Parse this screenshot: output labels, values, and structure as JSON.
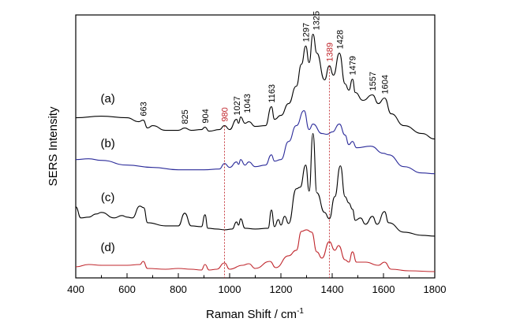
{
  "chart_data": {
    "type": "line",
    "title": "",
    "xlabel": "Raman Shift / cm",
    "xlabel_superscript": "-1",
    "ylabel": "SERS Intensity",
    "xlim": [
      400,
      1800
    ],
    "ylim": [
      0,
      100
    ],
    "xticks": [
      400,
      600,
      800,
      1000,
      1200,
      1400,
      1600,
      1800
    ],
    "xminor_step": 100,
    "yticks": [],
    "grid": false,
    "series": [
      {
        "label": "(a)",
        "label_x": 525,
        "color": "#000000",
        "points": [
          [
            400,
            60.9
          ],
          [
            500,
            61.5
          ],
          [
            600,
            60.9
          ],
          [
            645,
            59.4
          ],
          [
            663,
            60
          ],
          [
            680,
            57
          ],
          [
            700,
            57.9
          ],
          [
            750,
            56.1
          ],
          [
            800,
            56.1
          ],
          [
            825,
            57
          ],
          [
            850,
            56.1
          ],
          [
            890,
            56.4
          ],
          [
            904,
            57.3
          ],
          [
            920,
            55.8
          ],
          [
            960,
            56.4
          ],
          [
            980,
            57.9
          ],
          [
            1000,
            56.4
          ],
          [
            1027,
            60.3
          ],
          [
            1035,
            58.8
          ],
          [
            1043,
            61.2
          ],
          [
            1060,
            58.8
          ],
          [
            1075,
            59.4
          ],
          [
            1100,
            57.6
          ],
          [
            1140,
            57.9
          ],
          [
            1163,
            65.1
          ],
          [
            1175,
            60.3
          ],
          [
            1200,
            61.8
          ],
          [
            1230,
            66.3
          ],
          [
            1260,
            72.9
          ],
          [
            1280,
            81.3
          ],
          [
            1297,
            88.2
          ],
          [
            1310,
            81.9
          ],
          [
            1325,
            92.7
          ],
          [
            1340,
            85.5
          ],
          [
            1370,
            75.3
          ],
          [
            1389,
            80.7
          ],
          [
            1405,
            77.1
          ],
          [
            1428,
            85.5
          ],
          [
            1450,
            73.8
          ],
          [
            1465,
            71.4
          ],
          [
            1479,
            75.6
          ],
          [
            1490,
            70.5
          ],
          [
            1520,
            67.5
          ],
          [
            1557,
            69.6
          ],
          [
            1580,
            66.3
          ],
          [
            1604,
            68.4
          ],
          [
            1630,
            62.4
          ],
          [
            1680,
            57.9
          ],
          [
            1750,
            54.9
          ],
          [
            1800,
            52.8
          ]
        ]
      },
      {
        "label": "(b)",
        "label_x": 525,
        "color": "#2b2b9a",
        "points": [
          [
            400,
            45
          ],
          [
            450,
            45.3
          ],
          [
            500,
            44.7
          ],
          [
            600,
            42.9
          ],
          [
            700,
            42
          ],
          [
            800,
            41.1
          ],
          [
            900,
            41.1
          ],
          [
            960,
            41.4
          ],
          [
            980,
            43.5
          ],
          [
            1000,
            42
          ],
          [
            1027,
            44.1
          ],
          [
            1035,
            43.2
          ],
          [
            1043,
            45
          ],
          [
            1060,
            42.9
          ],
          [
            1075,
            44.1
          ],
          [
            1100,
            42.3
          ],
          [
            1140,
            42.9
          ],
          [
            1163,
            46.8
          ],
          [
            1175,
            44.4
          ],
          [
            1200,
            45
          ],
          [
            1230,
            51.9
          ],
          [
            1260,
            57.9
          ],
          [
            1290,
            63.6
          ],
          [
            1310,
            56.4
          ],
          [
            1325,
            58.5
          ],
          [
            1360,
            54.9
          ],
          [
            1380,
            54.6
          ],
          [
            1400,
            55.5
          ],
          [
            1428,
            58.5
          ],
          [
            1450,
            54.3
          ],
          [
            1465,
            50.7
          ],
          [
            1479,
            51.9
          ],
          [
            1495,
            49.5
          ],
          [
            1550,
            50.1
          ],
          [
            1600,
            47.4
          ],
          [
            1620,
            46.8
          ],
          [
            1680,
            42.3
          ],
          [
            1750,
            39.9
          ],
          [
            1800,
            39.6
          ]
        ]
      },
      {
        "label": "(c)",
        "label_x": 525,
        "color": "#000000",
        "points": [
          [
            400,
            27
          ],
          [
            420,
            22.8
          ],
          [
            450,
            23.1
          ],
          [
            480,
            24.3
          ],
          [
            500,
            24.9
          ],
          [
            550,
            22.8
          ],
          [
            580,
            23.7
          ],
          [
            600,
            23.1
          ],
          [
            620,
            22.8
          ],
          [
            650,
            27.3
          ],
          [
            665,
            26.7
          ],
          [
            680,
            21
          ],
          [
            750,
            19.8
          ],
          [
            800,
            19.8
          ],
          [
            825,
            24.6
          ],
          [
            850,
            19.8
          ],
          [
            890,
            19.5
          ],
          [
            904,
            24
          ],
          [
            915,
            18.9
          ],
          [
            950,
            18.6
          ],
          [
            980,
            18.3
          ],
          [
            1010,
            18.6
          ],
          [
            1027,
            21.3
          ],
          [
            1035,
            20.1
          ],
          [
            1043,
            22.5
          ],
          [
            1060,
            18.9
          ],
          [
            1100,
            18.6
          ],
          [
            1150,
            18.9
          ],
          [
            1163,
            25.8
          ],
          [
            1175,
            19.5
          ],
          [
            1190,
            22.2
          ],
          [
            1200,
            20.1
          ],
          [
            1215,
            23.4
          ],
          [
            1230,
            20.7
          ],
          [
            1260,
            33.9
          ],
          [
            1275,
            34.5
          ],
          [
            1297,
            42.9
          ],
          [
            1310,
            33
          ],
          [
            1325,
            54.9
          ],
          [
            1340,
            32.4
          ],
          [
            1370,
            24.9
          ],
          [
            1389,
            22.5
          ],
          [
            1410,
            30.9
          ],
          [
            1432,
            42.6
          ],
          [
            1450,
            30.9
          ],
          [
            1465,
            28.5
          ],
          [
            1479,
            26.1
          ],
          [
            1490,
            21.9
          ],
          [
            1510,
            22.8
          ],
          [
            1530,
            20.4
          ],
          [
            1557,
            23.4
          ],
          [
            1575,
            20.4
          ],
          [
            1604,
            25.2
          ],
          [
            1620,
            21
          ],
          [
            1680,
            17.4
          ],
          [
            1750,
            16.2
          ],
          [
            1800,
            15.9
          ]
        ]
      },
      {
        "label": "(d)",
        "label_x": 525,
        "color": "#c0272d",
        "points": [
          [
            400,
            4.2
          ],
          [
            450,
            5.1
          ],
          [
            500,
            4.8
          ],
          [
            600,
            4.8
          ],
          [
            650,
            5.1
          ],
          [
            663,
            6.3
          ],
          [
            680,
            3.6
          ],
          [
            750,
            3.3
          ],
          [
            800,
            3.6
          ],
          [
            850,
            3.3
          ],
          [
            890,
            3
          ],
          [
            904,
            5.1
          ],
          [
            920,
            3
          ],
          [
            950,
            3.3
          ],
          [
            980,
            5.7
          ],
          [
            1000,
            3.3
          ],
          [
            1050,
            4.8
          ],
          [
            1075,
            5.4
          ],
          [
            1100,
            3.6
          ],
          [
            1157,
            6.3
          ],
          [
            1180,
            3.9
          ],
          [
            1230,
            8.4
          ],
          [
            1260,
            10.5
          ],
          [
            1280,
            17.7
          ],
          [
            1300,
            18.3
          ],
          [
            1320,
            17.4
          ],
          [
            1340,
            9.9
          ],
          [
            1360,
            7.5
          ],
          [
            1389,
            13.8
          ],
          [
            1410,
            10.5
          ],
          [
            1425,
            12.3
          ],
          [
            1450,
            6.9
          ],
          [
            1465,
            6
          ],
          [
            1479,
            9.9
          ],
          [
            1495,
            6
          ],
          [
            1530,
            6
          ],
          [
            1580,
            4.8
          ],
          [
            1604,
            6
          ],
          [
            1630,
            3.3
          ],
          [
            1700,
            2.7
          ],
          [
            1800,
            2.4
          ]
        ]
      }
    ],
    "annotations": [
      {
        "text": "663",
        "x": 663,
        "color": "#000000"
      },
      {
        "text": "825",
        "x": 825,
        "color": "#000000"
      },
      {
        "text": "904",
        "x": 904,
        "color": "#000000"
      },
      {
        "text": "980",
        "x": 980,
        "color": "#c0272d",
        "dashed_line": true
      },
      {
        "text": "1027",
        "x": 1027,
        "color": "#000000"
      },
      {
        "text": "1043",
        "x": 1043,
        "color": "#000000"
      },
      {
        "text": "1163",
        "x": 1163,
        "color": "#000000"
      },
      {
        "text": "1297",
        "x": 1297,
        "color": "#000000"
      },
      {
        "text": "1325",
        "x": 1325,
        "color": "#000000"
      },
      {
        "text": "1389",
        "x": 1389,
        "color": "#c0272d",
        "dashed_line": true
      },
      {
        "text": "1428",
        "x": 1428,
        "color": "#000000"
      },
      {
        "text": "1479",
        "x": 1479,
        "color": "#000000"
      },
      {
        "text": "1557",
        "x": 1557,
        "color": "#000000"
      },
      {
        "text": "1604",
        "x": 1604,
        "color": "#000000"
      }
    ]
  }
}
